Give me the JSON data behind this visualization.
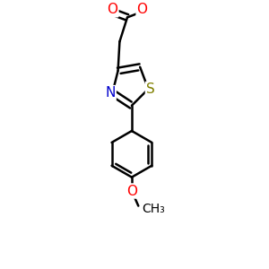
{
  "bg_color": "#ffffff",
  "atom_colors": {
    "C": "#000000",
    "N": "#0000cc",
    "S": "#808000",
    "O": "#ff0000"
  },
  "bond_color": "#000000",
  "bond_width": 1.8,
  "figsize": [
    3.0,
    3.0
  ],
  "dpi": 100,
  "xlim": [
    -0.5,
    1.8
  ],
  "ylim": [
    -3.2,
    1.5
  ]
}
